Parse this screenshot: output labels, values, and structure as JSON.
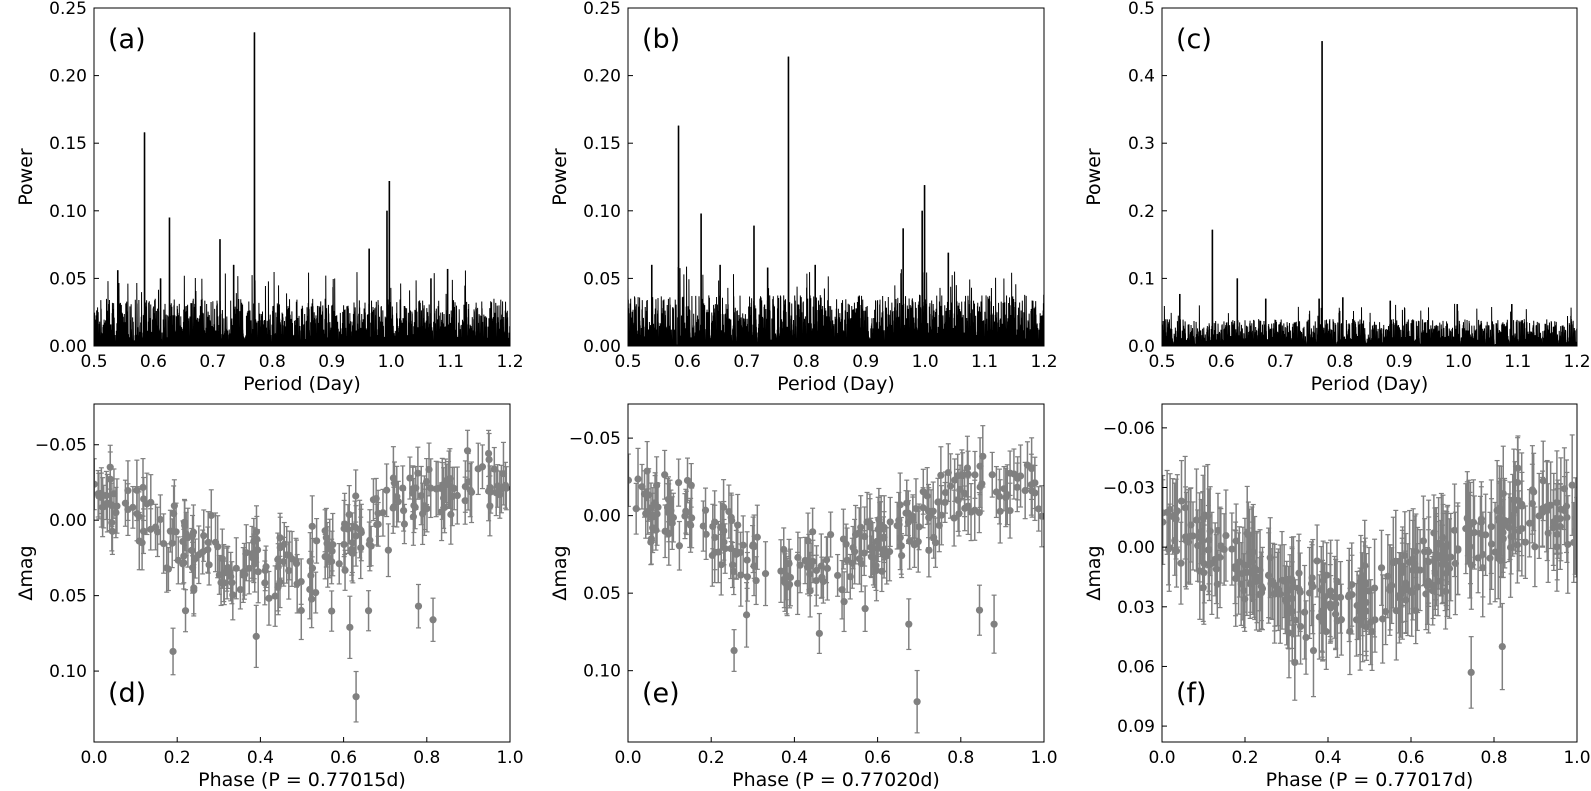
{
  "chart_data": [
    {
      "type": "line",
      "panel_label": "(a)",
      "xlabel": "Period (Day)",
      "ylabel": "Power",
      "xlim": [
        0.5,
        1.2
      ],
      "ylim": [
        0,
        0.25
      ],
      "xticks": [
        "0.5",
        "0.6",
        "0.7",
        "0.8",
        "0.9",
        "1.0",
        "1.1",
        "1.2"
      ],
      "yticks": [
        "0.00",
        "0.05",
        "0.10",
        "0.15",
        "0.20",
        "0.25"
      ],
      "peaks": [
        [
          0.585,
          0.158
        ],
        [
          0.627,
          0.095
        ],
        [
          0.712,
          0.079
        ],
        [
          0.77,
          0.232
        ],
        [
          0.963,
          0.072
        ],
        [
          0.997,
          0.122
        ],
        [
          0.993,
          0.1
        ],
        [
          0.54,
          0.056
        ],
        [
          0.735,
          0.06
        ],
        [
          1.067,
          0.05
        ],
        [
          1.095,
          0.057
        ],
        [
          0.612,
          0.05
        ]
      ],
      "noise_level": 0.035
    },
    {
      "type": "line",
      "panel_label": "(b)",
      "xlabel": "Period (Day)",
      "ylabel": "Power",
      "xlim": [
        0.5,
        1.2
      ],
      "ylim": [
        0,
        0.25
      ],
      "xticks": [
        "0.5",
        "0.6",
        "0.7",
        "0.8",
        "0.9",
        "1.0",
        "1.1",
        "1.2"
      ],
      "yticks": [
        "0.00",
        "0.05",
        "0.10",
        "0.15",
        "0.20",
        "0.25"
      ],
      "peaks": [
        [
          0.585,
          0.163
        ],
        [
          0.623,
          0.098
        ],
        [
          0.712,
          0.089
        ],
        [
          0.77,
          0.214
        ],
        [
          0.963,
          0.087
        ],
        [
          0.999,
          0.119
        ],
        [
          0.995,
          0.1
        ],
        [
          0.54,
          0.06
        ],
        [
          0.735,
          0.058
        ],
        [
          1.039,
          0.069
        ],
        [
          0.815,
          0.06
        ],
        [
          0.655,
          0.06
        ]
      ],
      "noise_level": 0.038
    },
    {
      "type": "line",
      "panel_label": "(c)",
      "xlabel": "Period (Day)",
      "ylabel": "Power",
      "xlim": [
        0.5,
        1.2
      ],
      "ylim": [
        0,
        0.5
      ],
      "xticks": [
        "0.5",
        "0.6",
        "0.7",
        "0.8",
        "0.9",
        "1.0",
        "1.1",
        "1.2"
      ],
      "yticks": [
        "0.0",
        "0.1",
        "0.2",
        "0.3",
        "0.4",
        "0.5"
      ],
      "peaks": [
        [
          0.585,
          0.172
        ],
        [
          0.627,
          0.1
        ],
        [
          0.77,
          0.451
        ],
        [
          0.765,
          0.07
        ],
        [
          0.53,
          0.077
        ],
        [
          0.675,
          0.07
        ],
        [
          0.805,
          0.072
        ],
        [
          0.885,
          0.067
        ],
        [
          0.998,
          0.062
        ],
        [
          1.09,
          0.062
        ]
      ],
      "noise_level": 0.04
    },
    {
      "type": "scatter",
      "panel_label": "(d)",
      "xlabel": "Phase (P = 0.77015d)",
      "ylabel": "Δmag",
      "xlim": [
        0.0,
        1.0
      ],
      "ylim": [
        -0.077,
        0.147
      ],
      "y_inverted": true,
      "xticks": [
        "0.0",
        "0.2",
        "0.4",
        "0.6",
        "0.8",
        "1.0"
      ],
      "yticks": [
        "−0.05",
        "0.00",
        "0.05",
        "0.10"
      ],
      "ytick_values": [
        -0.05,
        0.0,
        0.05,
        0.1
      ],
      "n_points": 230,
      "error": 0.016,
      "outliers": [
        [
          0.19,
          0.087
        ],
        [
          0.22,
          0.06
        ],
        [
          0.39,
          0.077
        ],
        [
          0.615,
          0.071
        ],
        [
          0.63,
          0.117
        ],
        [
          0.78,
          0.057
        ],
        [
          0.815,
          0.066
        ],
        [
          0.66,
          0.06
        ]
      ]
    },
    {
      "type": "scatter",
      "panel_label": "(e)",
      "xlabel": "Phase (P = 0.77020d)",
      "ylabel": "Δmag",
      "xlim": [
        0.0,
        1.0
      ],
      "ylim": [
        -0.072,
        0.146
      ],
      "y_inverted": true,
      "xticks": [
        "0.0",
        "0.2",
        "0.4",
        "0.6",
        "0.8",
        "1.0"
      ],
      "yticks": [
        "−0.05",
        "0.00",
        "0.05",
        "0.10"
      ],
      "ytick_values": [
        -0.05,
        0.0,
        0.05,
        0.1
      ],
      "n_points": 230,
      "error": 0.016,
      "outliers": [
        [
          0.255,
          0.087
        ],
        [
          0.285,
          0.064
        ],
        [
          0.46,
          0.076
        ],
        [
          0.695,
          0.12
        ],
        [
          0.675,
          0.07
        ],
        [
          0.845,
          0.061
        ],
        [
          0.88,
          0.07
        ],
        [
          0.57,
          0.06
        ]
      ]
    },
    {
      "type": "scatter",
      "panel_label": "(f)",
      "xlabel": "Phase (P = 0.77017d)",
      "ylabel": "Δmag",
      "xlim": [
        0.0,
        1.0
      ],
      "ylim": [
        -0.072,
        0.098
      ],
      "y_inverted": true,
      "xticks": [
        "0.0",
        "0.2",
        "0.4",
        "0.6",
        "0.8",
        "1.0"
      ],
      "yticks": [
        "−0.06",
        "−0.03",
        "0.00",
        "0.03",
        "0.06",
        "0.09"
      ],
      "ytick_values": [
        -0.06,
        -0.03,
        0.0,
        0.03,
        0.06,
        0.09
      ],
      "n_points": 320,
      "error": 0.02,
      "outliers": [
        [
          0.32,
          0.058
        ],
        [
          0.745,
          0.063
        ],
        [
          0.365,
          0.052
        ],
        [
          0.82,
          0.05
        ]
      ]
    }
  ]
}
